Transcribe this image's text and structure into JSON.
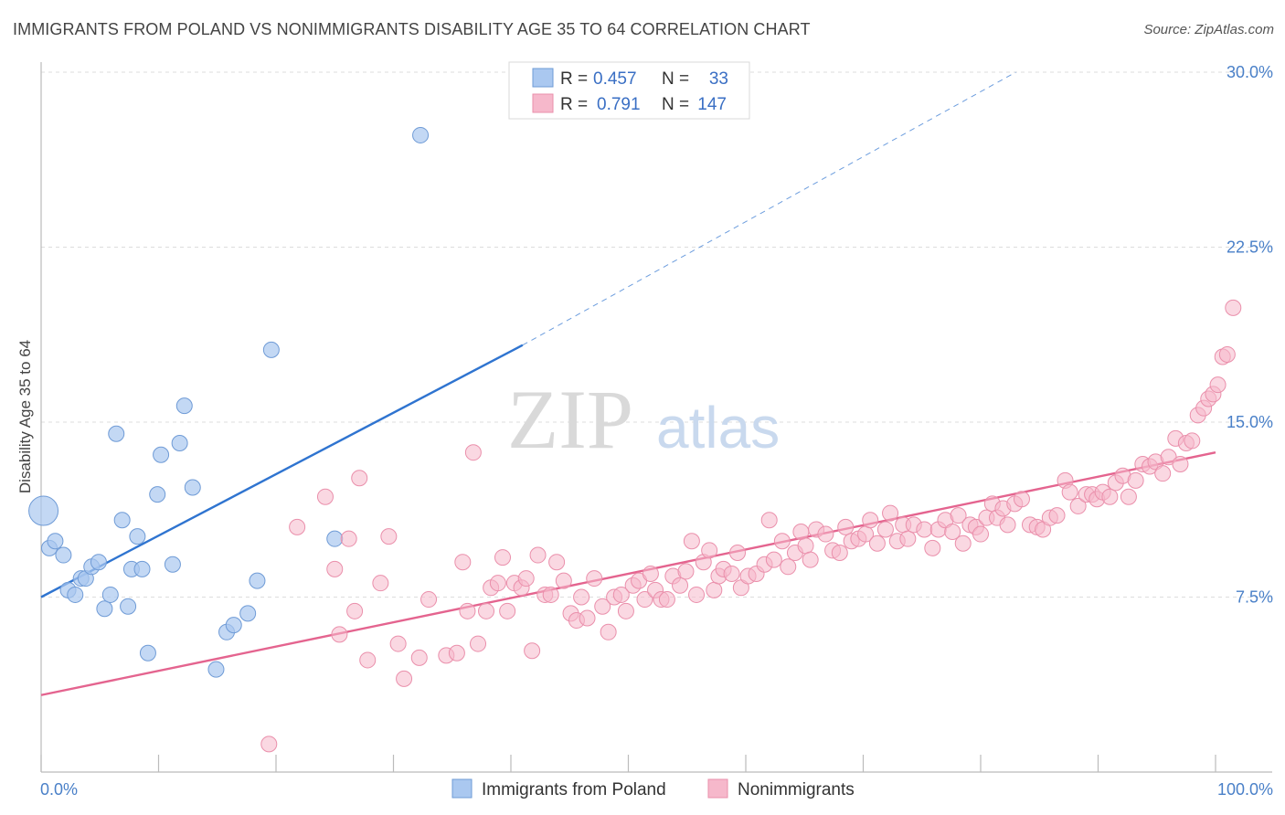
{
  "header": {
    "title": "IMMIGRANTS FROM POLAND VS NONIMMIGRANTS DISABILITY AGE 35 TO 64 CORRELATION CHART",
    "source": "Source: ZipAtlas.com"
  },
  "watermark": {
    "zip": "ZIP",
    "atlas": "atlas"
  },
  "colors": {
    "blue_fill": "#aac8f0",
    "blue_stroke": "#6f9bd6",
    "blue_line": "#2f74d0",
    "pink_fill": "#f6b8cb",
    "pink_stroke": "#ea8fab",
    "pink_line": "#e4648f",
    "tick_text": "#4a80c8",
    "grid": "#dddddd"
  },
  "legend": {
    "rows": [
      {
        "r_label": "R =",
        "r_value": "0.457",
        "n_label": "N =",
        "n_value": "33"
      },
      {
        "r_label": "R =",
        "r_value": "0.791",
        "n_label": "N =",
        "n_value": "147"
      }
    ]
  },
  "chart_data": {
    "type": "scatter",
    "xlabel": "",
    "ylabel": "Disability Age 35 to 64",
    "xlim": [
      0,
      100
    ],
    "ylim": [
      0,
      31
    ],
    "x_tick_labels": [
      "0.0%",
      "100.0%"
    ],
    "y_ticks": [
      7.5,
      15.0,
      22.5,
      30.0
    ],
    "y_tick_labels": [
      "7.5%",
      "15.0%",
      "22.5%",
      "30.0%"
    ],
    "grid": true,
    "legend_position": "top-center",
    "series": [
      {
        "name": "Immigrants from Poland",
        "color": "blue",
        "trend": {
          "x0": 0,
          "y0": 7.5,
          "x1": 41,
          "y1": 18.3,
          "dashed_to_x": 83,
          "dashed_to_y": 30.0
        },
        "points": [
          [
            0.2,
            11.2,
            "large"
          ],
          [
            0.7,
            9.6
          ],
          [
            1.2,
            9.9
          ],
          [
            1.9,
            9.3
          ],
          [
            2.3,
            7.8
          ],
          [
            2.9,
            7.6
          ],
          [
            3.4,
            8.3
          ],
          [
            3.8,
            8.3
          ],
          [
            4.3,
            8.8
          ],
          [
            4.9,
            9.0
          ],
          [
            5.4,
            7.0
          ],
          [
            5.9,
            7.6
          ],
          [
            6.4,
            14.5
          ],
          [
            6.9,
            10.8
          ],
          [
            7.4,
            7.1
          ],
          [
            7.7,
            8.7
          ],
          [
            8.2,
            10.1
          ],
          [
            8.6,
            8.7
          ],
          [
            9.1,
            5.1
          ],
          [
            9.9,
            11.9
          ],
          [
            10.2,
            13.6
          ],
          [
            11.2,
            8.9
          ],
          [
            11.8,
            14.1
          ],
          [
            12.2,
            15.7
          ],
          [
            12.9,
            12.2
          ],
          [
            14.9,
            4.4
          ],
          [
            15.8,
            6.0
          ],
          [
            16.4,
            6.3
          ],
          [
            17.6,
            6.8
          ],
          [
            18.4,
            8.2
          ],
          [
            19.6,
            18.1
          ],
          [
            25.0,
            10.0
          ],
          [
            32.3,
            27.3
          ]
        ]
      },
      {
        "name": "Nonimmigrants",
        "color": "pink",
        "trend": {
          "x0": 0,
          "y0": 3.3,
          "x1": 100,
          "y1": 13.7
        },
        "points": [
          [
            19.4,
            1.2
          ],
          [
            21.8,
            10.5
          ],
          [
            24.2,
            11.8
          ],
          [
            25.0,
            8.7
          ],
          [
            25.4,
            5.9
          ],
          [
            26.2,
            10.0
          ],
          [
            26.7,
            6.9
          ],
          [
            27.1,
            12.6
          ],
          [
            27.8,
            4.8
          ],
          [
            28.9,
            8.1
          ],
          [
            29.6,
            10.1
          ],
          [
            30.4,
            5.5
          ],
          [
            30.9,
            4.0
          ],
          [
            32.2,
            4.9
          ],
          [
            33.0,
            7.4
          ],
          [
            34.5,
            5.0
          ],
          [
            35.4,
            5.1
          ],
          [
            35.9,
            9.0
          ],
          [
            36.3,
            6.9
          ],
          [
            36.8,
            13.7
          ],
          [
            37.2,
            5.5
          ],
          [
            37.9,
            6.9
          ],
          [
            38.3,
            7.9
          ],
          [
            38.9,
            8.1
          ],
          [
            39.3,
            9.2
          ],
          [
            39.7,
            6.9
          ],
          [
            40.3,
            8.1
          ],
          [
            40.9,
            7.9
          ],
          [
            41.3,
            8.3
          ],
          [
            41.8,
            5.2
          ],
          [
            42.3,
            9.3
          ],
          [
            42.9,
            7.6
          ],
          [
            43.4,
            7.6
          ],
          [
            43.9,
            9.0
          ],
          [
            44.5,
            8.2
          ],
          [
            45.1,
            6.8
          ],
          [
            45.6,
            6.5
          ],
          [
            46.0,
            7.5
          ],
          [
            46.5,
            6.6
          ],
          [
            47.1,
            8.3
          ],
          [
            47.8,
            7.1
          ],
          [
            48.3,
            6.0
          ],
          [
            48.8,
            7.5
          ],
          [
            49.4,
            7.6
          ],
          [
            49.8,
            6.9
          ],
          [
            50.4,
            8.0
          ],
          [
            50.9,
            8.2
          ],
          [
            51.4,
            7.4
          ],
          [
            51.9,
            8.5
          ],
          [
            52.3,
            7.8
          ],
          [
            52.8,
            7.4
          ],
          [
            53.3,
            7.4
          ],
          [
            53.8,
            8.4
          ],
          [
            54.4,
            8.0
          ],
          [
            54.9,
            8.6
          ],
          [
            55.4,
            9.9
          ],
          [
            55.8,
            7.6
          ],
          [
            56.4,
            9.0
          ],
          [
            56.9,
            9.5
          ],
          [
            57.3,
            7.8
          ],
          [
            57.7,
            8.4
          ],
          [
            58.1,
            8.7
          ],
          [
            58.8,
            8.5
          ],
          [
            59.3,
            9.4
          ],
          [
            59.6,
            7.9
          ],
          [
            60.2,
            8.4
          ],
          [
            60.9,
            8.5
          ],
          [
            61.6,
            8.9
          ],
          [
            62.0,
            10.8
          ],
          [
            62.4,
            9.1
          ],
          [
            63.1,
            9.9
          ],
          [
            63.6,
            8.8
          ],
          [
            64.2,
            9.4
          ],
          [
            64.7,
            10.3
          ],
          [
            65.1,
            9.7
          ],
          [
            65.5,
            9.1
          ],
          [
            66.0,
            10.4
          ],
          [
            66.8,
            10.2
          ],
          [
            67.4,
            9.5
          ],
          [
            68.0,
            9.4
          ],
          [
            68.5,
            10.5
          ],
          [
            69.0,
            9.9
          ],
          [
            69.6,
            10.0
          ],
          [
            70.2,
            10.2
          ],
          [
            70.6,
            10.8
          ],
          [
            71.2,
            9.8
          ],
          [
            71.9,
            10.4
          ],
          [
            72.3,
            11.1
          ],
          [
            72.9,
            9.9
          ],
          [
            73.4,
            10.6
          ],
          [
            73.8,
            10.0
          ],
          [
            74.3,
            10.6
          ],
          [
            75.2,
            10.4
          ],
          [
            75.9,
            9.6
          ],
          [
            76.4,
            10.4
          ],
          [
            77.0,
            10.8
          ],
          [
            77.6,
            10.3
          ],
          [
            78.1,
            11.0
          ],
          [
            78.5,
            9.8
          ],
          [
            79.1,
            10.6
          ],
          [
            79.6,
            10.5
          ],
          [
            80.0,
            10.2
          ],
          [
            80.5,
            10.9
          ],
          [
            81.0,
            11.5
          ],
          [
            81.4,
            10.9
          ],
          [
            81.9,
            11.3
          ],
          [
            82.3,
            10.6
          ],
          [
            82.9,
            11.5
          ],
          [
            83.5,
            11.7
          ],
          [
            84.2,
            10.6
          ],
          [
            84.8,
            10.5
          ],
          [
            85.3,
            10.4
          ],
          [
            85.9,
            10.9
          ],
          [
            86.5,
            11.0
          ],
          [
            87.2,
            12.5
          ],
          [
            87.6,
            12.0
          ],
          [
            88.3,
            11.4
          ],
          [
            89.0,
            11.9
          ],
          [
            89.5,
            11.9
          ],
          [
            89.9,
            11.7
          ],
          [
            90.4,
            12.0
          ],
          [
            91.0,
            11.8
          ],
          [
            91.5,
            12.4
          ],
          [
            92.1,
            12.7
          ],
          [
            92.6,
            11.8
          ],
          [
            93.2,
            12.5
          ],
          [
            93.8,
            13.2
          ],
          [
            94.4,
            13.1
          ],
          [
            94.9,
            13.3
          ],
          [
            95.5,
            12.8
          ],
          [
            96.0,
            13.5
          ],
          [
            96.6,
            14.3
          ],
          [
            97.0,
            13.2
          ],
          [
            97.5,
            14.1
          ],
          [
            98.0,
            14.2
          ],
          [
            98.5,
            15.3
          ],
          [
            99.0,
            15.6
          ],
          [
            99.4,
            16.0
          ],
          [
            99.8,
            16.2
          ],
          [
            100.2,
            16.6
          ],
          [
            100.6,
            17.8
          ],
          [
            101.0,
            17.9
          ],
          [
            101.5,
            19.9
          ]
        ]
      }
    ]
  }
}
